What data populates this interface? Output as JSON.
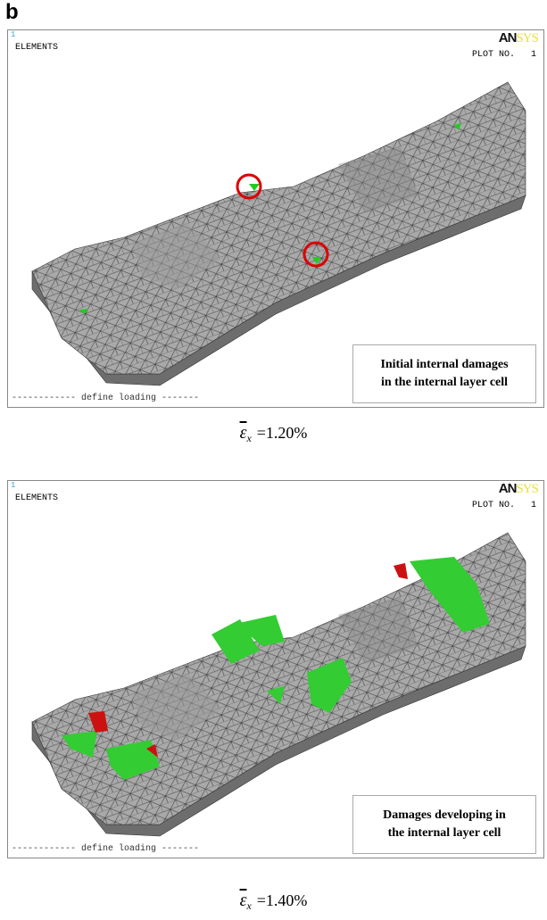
{
  "figure_label": "b",
  "panels": [
    {
      "window_number": "1",
      "plot_type": "ELEMENTS",
      "logo_left": "AN",
      "logo_right": "SYS",
      "plot_no_label": "PLOT NO.",
      "plot_no": "1",
      "status": "define loading",
      "caption_lines": [
        "Initial internal damages",
        "in the internal layer cell"
      ],
      "strain_symbol": "ε",
      "strain_subscript": "x",
      "strain_value": "=1.20%"
    },
    {
      "window_number": "1",
      "plot_type": "ELEMENTS",
      "logo_left": "AN",
      "logo_right": "SYS",
      "plot_no_label": "PLOT NO.",
      "plot_no": "1",
      "status": "define loading",
      "caption_lines": [
        "Damages developing in",
        "the internal layer cell"
      ],
      "strain_symbol": "ε",
      "strain_subscript": "x",
      "strain_value": "=1.40%"
    }
  ]
}
